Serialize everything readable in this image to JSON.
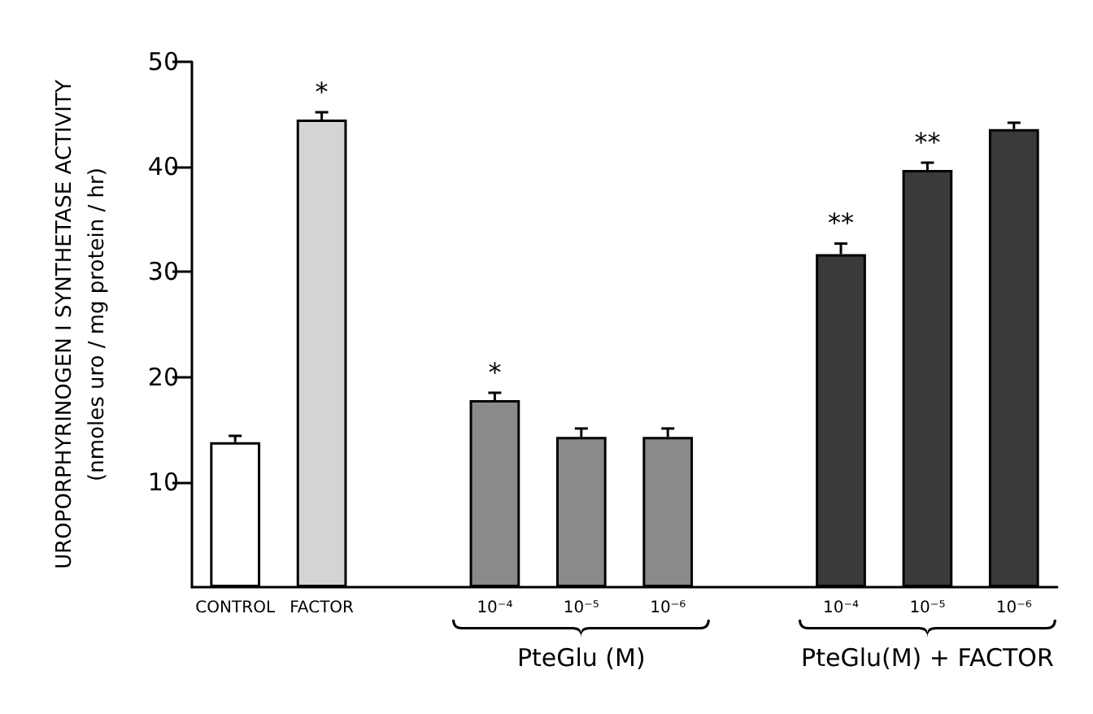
{
  "chart_data": {
    "type": "bar",
    "ylabel": "UROPORPHYRINOGEN I SYNTHETASE ACTIVITY\n(nmoles uro / mg protein / hr)",
    "categories": [
      "CONTROL",
      "FACTOR",
      null,
      "10⁻⁴",
      "10⁻⁵",
      "10⁻⁶",
      null,
      "10⁻⁴",
      "10⁻⁵",
      "10⁻⁶"
    ],
    "values": [
      13.8,
      44.5,
      null,
      17.8,
      14.3,
      14.3,
      null,
      31.7,
      39.7,
      43.6
    ],
    "errors": [
      0.6,
      0.7,
      null,
      0.7,
      0.8,
      0.8,
      null,
      1.0,
      0.7,
      0.6
    ],
    "colors": [
      "#ffffff",
      "#d4d4d4",
      null,
      "#8a8a8a",
      "#8a8a8a",
      "#8a8a8a",
      null,
      "#3a3a3a",
      "#3a3a3a",
      "#3a3a3a"
    ],
    "value_labels": [
      null,
      "*",
      null,
      "*",
      null,
      null,
      null,
      "**",
      "**",
      null
    ],
    "annotations": [
      "PteGlu (M)",
      "PteGlu(M) + FACTOR"
    ],
    "ylim": [
      0,
      50
    ],
    "yticks": [
      10,
      20,
      30,
      40,
      50
    ],
    "grid": false
  }
}
